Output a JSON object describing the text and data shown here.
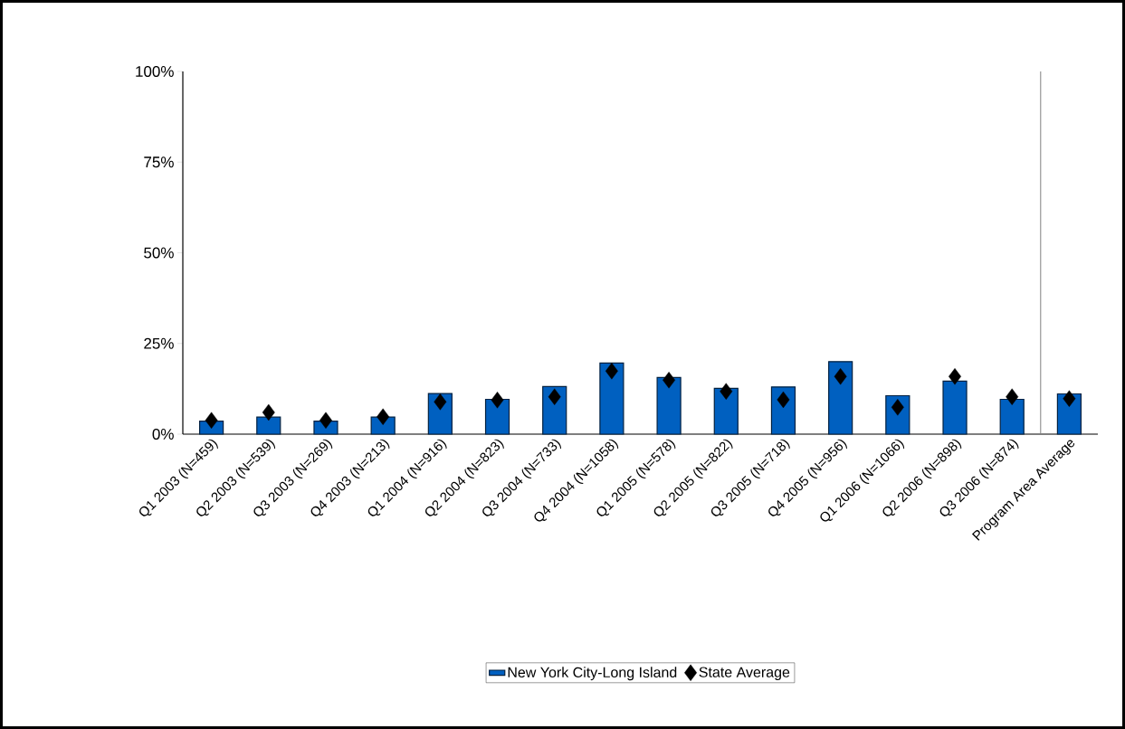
{
  "chart_data": {
    "type": "bar",
    "categories": [
      "Q1 2003 (N=459)",
      "Q2 2003 (N=539)",
      "Q3 2003 (N=269)",
      "Q4 2003 (N=213)",
      "Q1 2004 (N=916)",
      "Q2 2004 (N=823)",
      "Q3 2004 (N=733)",
      "Q4 2004 (N=1058)",
      "Q1 2005 (N=578)",
      "Q2 2005 (N=822)",
      "Q3 2005 (N=718)",
      "Q4 2005 (N=956)",
      "Q1 2006 (N=1066)",
      "Q2 2006 (N=898)",
      "Q3 2006 (N=874)",
      "Program Area Average"
    ],
    "series": [
      {
        "name": "New York City-Long Island",
        "color": "#0060c0",
        "values": [
          3.6,
          4.7,
          3.6,
          4.7,
          11.2,
          9.6,
          13.1,
          19.6,
          15.6,
          12.6,
          13.0,
          20.0,
          10.6,
          14.6,
          9.6,
          11.1
        ]
      },
      {
        "name": "State Average",
        "type": "scatter",
        "marker": "diamond",
        "color": "#000000",
        "values": [
          3.8,
          6.0,
          3.8,
          4.8,
          8.9,
          9.4,
          10.3,
          17.4,
          14.9,
          11.8,
          9.5,
          15.9,
          7.4,
          15.9,
          10.3,
          9.8
        ]
      }
    ],
    "ylim": [
      0,
      100
    ],
    "yticks": [
      {
        "value": 0,
        "label": "0%"
      },
      {
        "value": 25,
        "label": "25%"
      },
      {
        "value": 50,
        "label": "50%"
      },
      {
        "value": 75,
        "label": "75%"
      },
      {
        "value": 100,
        "label": "100%"
      }
    ],
    "legend": "bottom"
  }
}
